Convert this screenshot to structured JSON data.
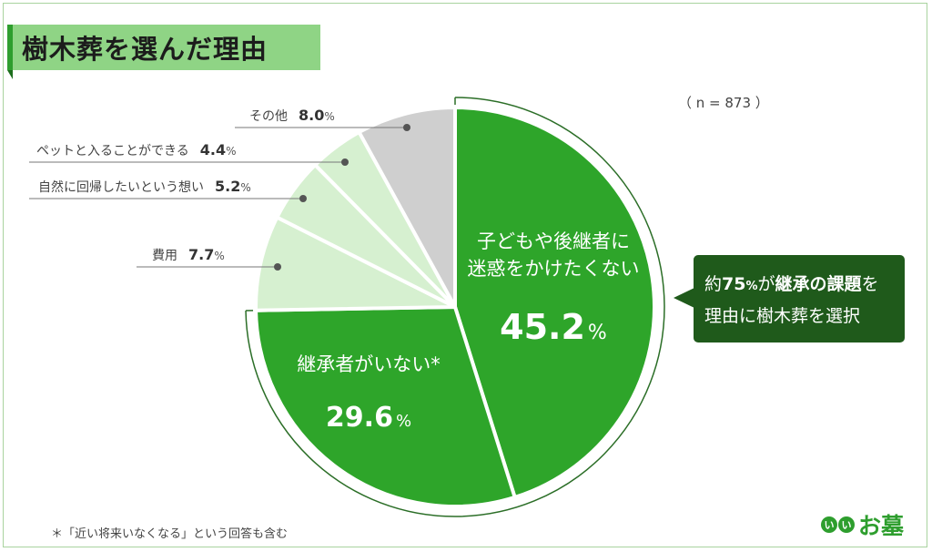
{
  "title": "樹木葬を選んだ理由",
  "sample_size": "（ n = 873 ）",
  "callout": {
    "line1_pre": "約",
    "line1_num": "75",
    "line1_pct": "%",
    "line1_mid": "が",
    "line1_bold": "継承の課題",
    "line1_post": "を",
    "line2": "理由に樹木葬を選択"
  },
  "footnote": "＊「近い将来いなくなる」という回答も含む",
  "logo": {
    "dot1": "い",
    "dot2": "い",
    "text": "お墓"
  },
  "colors": {
    "dark_green": "#2ea52a",
    "light_green": "#d6f0d0",
    "gray": "#cfcfcf",
    "callout_bg": "#1f5a1b",
    "title_bg": "#8fd485"
  },
  "chart_data": {
    "type": "pie",
    "start": "12 o'clock",
    "direction": "clockwise",
    "slices": [
      {
        "label_lines": [
          "子どもや後継者に",
          "迷惑をかけたくない"
        ],
        "value": 45.2,
        "color": "#2ea52a",
        "label_position": "inside"
      },
      {
        "label_lines": [
          "継承者がいない*"
        ],
        "value": 29.6,
        "color": "#2ea52a",
        "label_position": "inside"
      },
      {
        "label_lines": [
          "費用"
        ],
        "value": 7.7,
        "color": "#d6f0d0",
        "label_position": "outside"
      },
      {
        "label_lines": [
          "自然に回帰したいという想い"
        ],
        "value": 5.2,
        "color": "#d6f0d0",
        "label_position": "outside"
      },
      {
        "label_lines": [
          "ペットと入ることができる"
        ],
        "value": 4.4,
        "color": "#d6f0d0",
        "label_position": "outside"
      },
      {
        "label_lines": [
          "その他"
        ],
        "value": 8.0,
        "color": "#cfcfcf",
        "label_position": "outside"
      }
    ],
    "value_suffix": "%",
    "value_format": "one decimal"
  }
}
